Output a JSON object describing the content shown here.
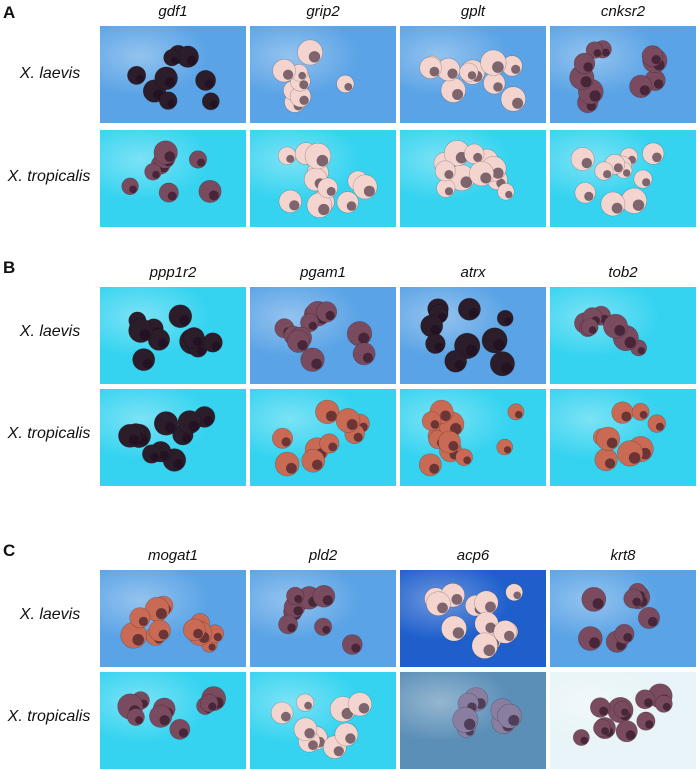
{
  "panels": [
    {
      "letter": "A",
      "genes": [
        "gdf1",
        "grip2",
        "gplt",
        "cnksr2"
      ],
      "species": [
        "X. laevis",
        "X. tropicalis"
      ]
    },
    {
      "letter": "B",
      "genes": [
        "ppp1r2",
        "pgam1",
        "atrx",
        "tob2"
      ],
      "species": [
        "X. laevis",
        "X. tropicalis"
      ]
    },
    {
      "letter": "C",
      "genes": [
        "mogat1",
        "pld2",
        "acp6",
        "krt8"
      ],
      "species": [
        "X. laevis",
        "X. tropicalis"
      ]
    }
  ],
  "palette": {
    "bg_blue": "#5aa3e6",
    "bg_cyan": "#35d3f0",
    "bg_deep": "#1e5fcc",
    "egg_pale": "#f4d4cf",
    "egg_purple": "#7a4a5e",
    "egg_dark": "#2b1d2a",
    "egg_orange": "#c96a55"
  }
}
